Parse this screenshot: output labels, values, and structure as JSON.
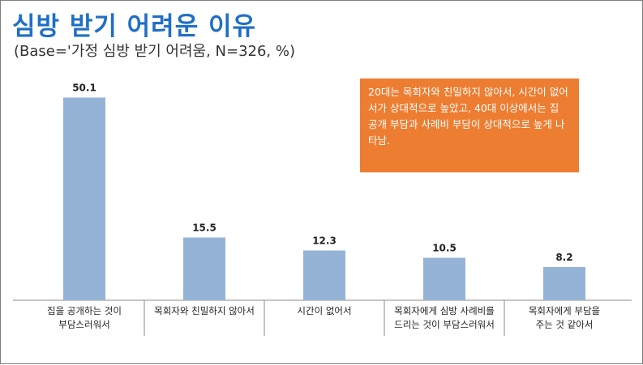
{
  "slide": {
    "title": "심방 받기 어려운 이유",
    "subtitle": "(Base='가정 심방 받기 어려움, N=326, %)",
    "note": "20대는 목회자와 친밀하지 않아서, 시간이 없어서가 상대적으로 높았고, 40대 이상에서는 집 공개 부담과 사례비 부담이 상대적으로 높게 나타남."
  },
  "colors": {
    "title": "#1f6fc5",
    "bar": "#95b3d7",
    "note_bg": "#ed7d31",
    "axis": "#8c8c8c",
    "text": "#222222"
  },
  "chart_data": {
    "type": "bar",
    "title": "심방 받기 어려운 이유",
    "xlabel": "",
    "ylabel": "",
    "ylim": [
      0,
      60
    ],
    "grid": false,
    "categories": [
      [
        "집을 공개하는 것이",
        "부담스러워서"
      ],
      [
        "목회자와 친밀하지 않아서"
      ],
      [
        "시간이 없어서"
      ],
      [
        "목회자에게 심방 사례비를",
        "드리는 것이 부담스러워서"
      ],
      [
        "목회자에게 부담을",
        "주는 것 같아서"
      ]
    ],
    "values": [
      50.1,
      15.5,
      12.3,
      10.5,
      8.2
    ],
    "value_labels": [
      "50.1",
      "15.5",
      "12.3",
      "10.5",
      "8.2"
    ]
  }
}
